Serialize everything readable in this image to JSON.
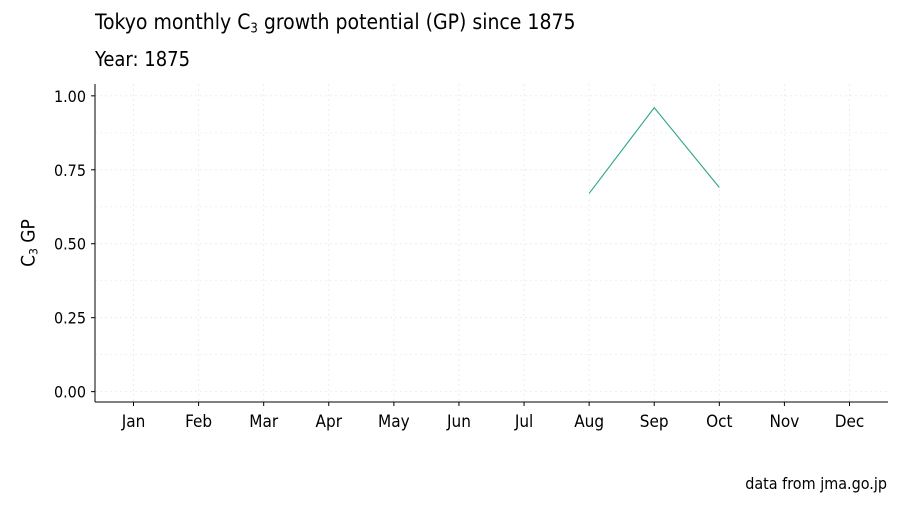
{
  "title": {
    "pre": "Tokyo monthly C",
    "sub": "3",
    "post": " growth potential (GP) since 1875"
  },
  "subtitle": "Year: 1875",
  "caption": "data from jma.go.jp",
  "colors": {
    "line": "#2ca58a",
    "grid": "#ebebeb",
    "axis": "#000000"
  },
  "chart_data": {
    "type": "line",
    "categories": [
      "Jan",
      "Feb",
      "Mar",
      "Apr",
      "May",
      "Jun",
      "Jul",
      "Aug",
      "Sep",
      "Oct",
      "Nov",
      "Dec"
    ],
    "series": [
      {
        "values": [
          null,
          null,
          null,
          null,
          null,
          null,
          null,
          0.67,
          0.96,
          0.69,
          null,
          null
        ]
      }
    ],
    "ylabel": {
      "pre": "C",
      "sub": "3",
      "post": " GP"
    },
    "ylim": [
      -0.035,
      1.04
    ],
    "yticks": [
      0,
      0.25,
      0.5,
      0.75,
      1.0
    ],
    "ytick_labels": [
      "0.00",
      "0.25",
      "0.50",
      "0.75",
      "1.00"
    ],
    "grid": true
  }
}
